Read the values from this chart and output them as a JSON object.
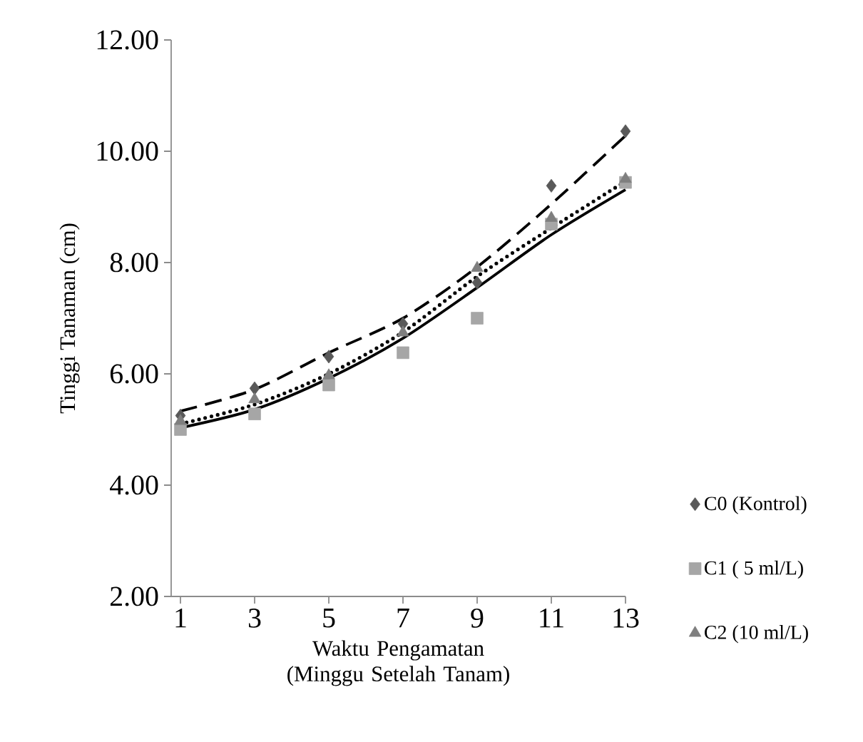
{
  "chart_data": {
    "type": "scatter",
    "xlabel": "Waktu Pengamatan (Minggu Setelah Tanam)",
    "ylabel": "Tinggi Tanaman (cm)",
    "x": [
      1,
      3,
      5,
      7,
      9,
      11,
      13
    ],
    "series": [
      {
        "name": "C0 (Kontrol)",
        "marker": "diamond",
        "color": "#595959",
        "values": [
          5.25,
          5.74,
          6.31,
          6.9,
          7.64,
          9.38,
          10.36
        ]
      },
      {
        "name": "C1 ( 5 ml/L)",
        "marker": "square",
        "color": "#a6a6a6",
        "values": [
          5.0,
          5.28,
          5.8,
          6.38,
          7.0,
          8.69,
          9.44
        ]
      },
      {
        "name": "C2 (10 ml/L)",
        "marker": "triangle",
        "color": "#7f7f7f",
        "values": [
          5.15,
          5.54,
          5.97,
          6.74,
          7.9,
          8.8,
          9.5
        ]
      },
      {
        "type": "line",
        "line_style": "dashed",
        "color": "#000000",
        "values": [
          5.33,
          5.72,
          6.38,
          7.0,
          7.92,
          9.05,
          10.28
        ]
      },
      {
        "type": "line",
        "line_style": "solid",
        "color": "#000000",
        "values": [
          5.03,
          5.36,
          5.92,
          6.64,
          7.55,
          8.5,
          9.31
        ]
      },
      {
        "type": "line",
        "line_style": "dotted",
        "color": "#000000",
        "values": [
          5.1,
          5.45,
          6.0,
          6.75,
          7.75,
          8.62,
          9.46
        ]
      }
    ],
    "xlim": [
      0.75,
      13
    ],
    "ylim": [
      2,
      12
    ],
    "xticks": [
      1,
      3,
      5,
      7,
      9,
      11,
      13
    ],
    "yticks": [
      {
        "value": 2,
        "label": "2.00"
      },
      {
        "value": 4,
        "label": "4.00"
      },
      {
        "value": 6,
        "label": "6.00"
      },
      {
        "value": 8,
        "label": "8.00"
      },
      {
        "value": 10,
        "label": "10.00"
      },
      {
        "value": 12,
        "label": "12.00"
      }
    ],
    "grid": false,
    "legend": "right"
  }
}
